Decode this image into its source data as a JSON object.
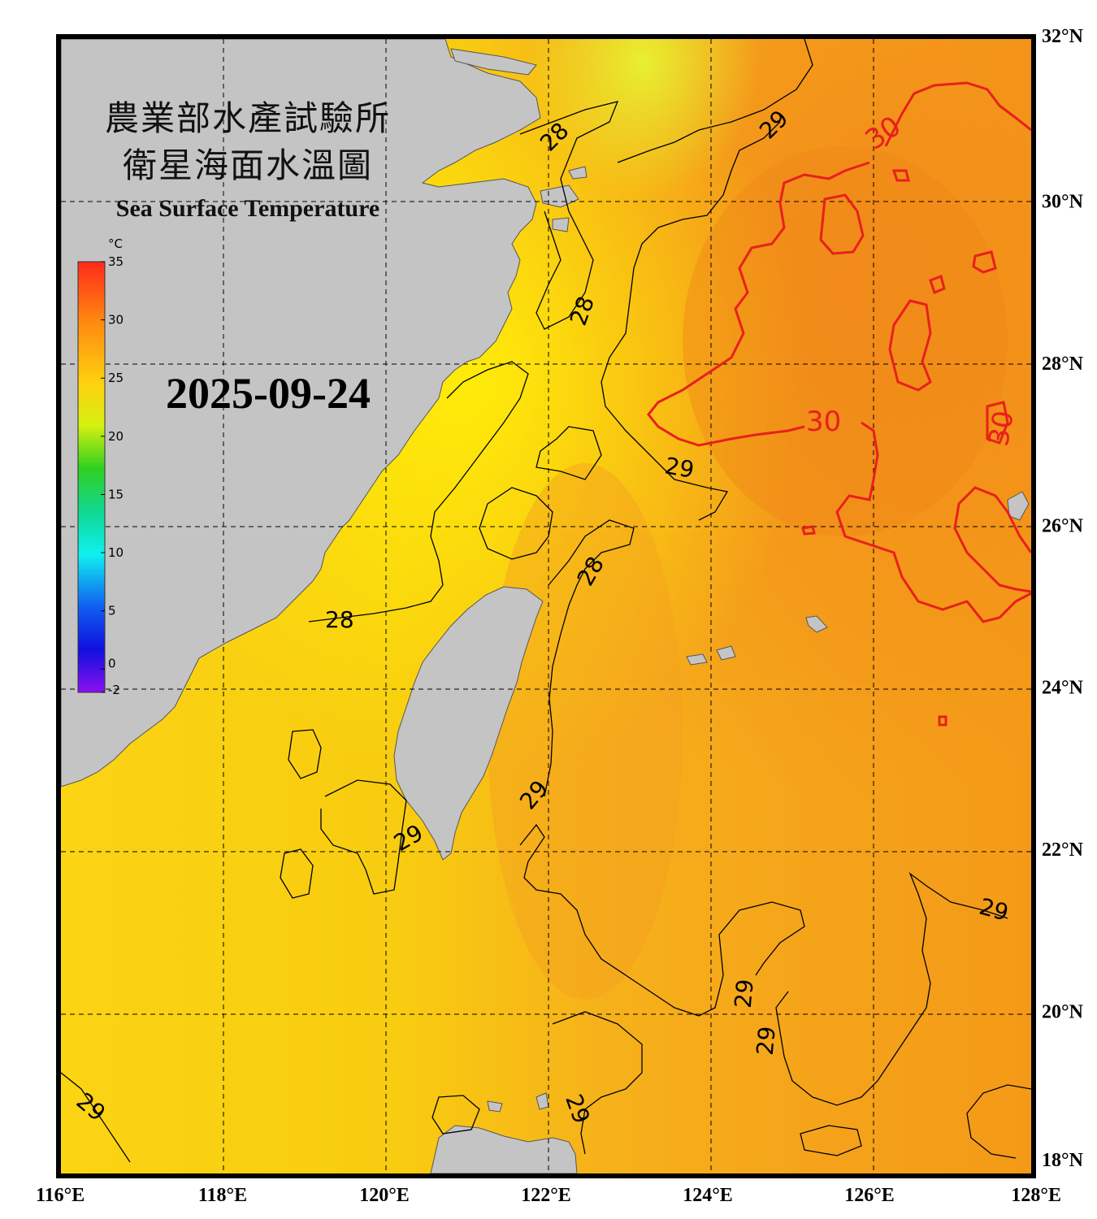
{
  "title_cn_line1": "農業部水產試驗所",
  "title_cn_line2": "衛星海面水溫圖",
  "title_en": "Sea Surface Temperature",
  "date": "2025-09-24",
  "colorbar": {
    "unit": "°C",
    "ticks": [
      "35",
      "30",
      "25",
      "20",
      "15",
      "10",
      "5",
      "0",
      "-2"
    ],
    "range": [
      -2,
      35
    ]
  },
  "axes": {
    "longitude_labels": [
      "116°E",
      "118°E",
      "120°E",
      "122°E",
      "124°E",
      "126°E",
      "128°E"
    ],
    "latitude_labels": [
      "32°N",
      "30°N",
      "28°N",
      "26°N",
      "24°N",
      "22°N",
      "20°N",
      "18°N"
    ],
    "lon_range": [
      116,
      128
    ],
    "lat_range": [
      18,
      32
    ]
  },
  "contour_labels": {
    "c28_a": "28",
    "c28_b": "28",
    "c28_c": "28",
    "c28_d": "28",
    "c29_a": "29",
    "c29_b": "29",
    "c29_c": "29",
    "c29_d": "29",
    "c29_e": "29",
    "c29_f": "29",
    "c29_g": "29",
    "c29_h": "29",
    "c29_i": "29",
    "c30_a": "30",
    "c30_b": "30",
    "c30_c": "30"
  },
  "colors": {
    "land": "#c4c4c4",
    "isotherm_30": "#e8201c",
    "isotherm_other": "#000000",
    "frame": "#000000"
  }
}
